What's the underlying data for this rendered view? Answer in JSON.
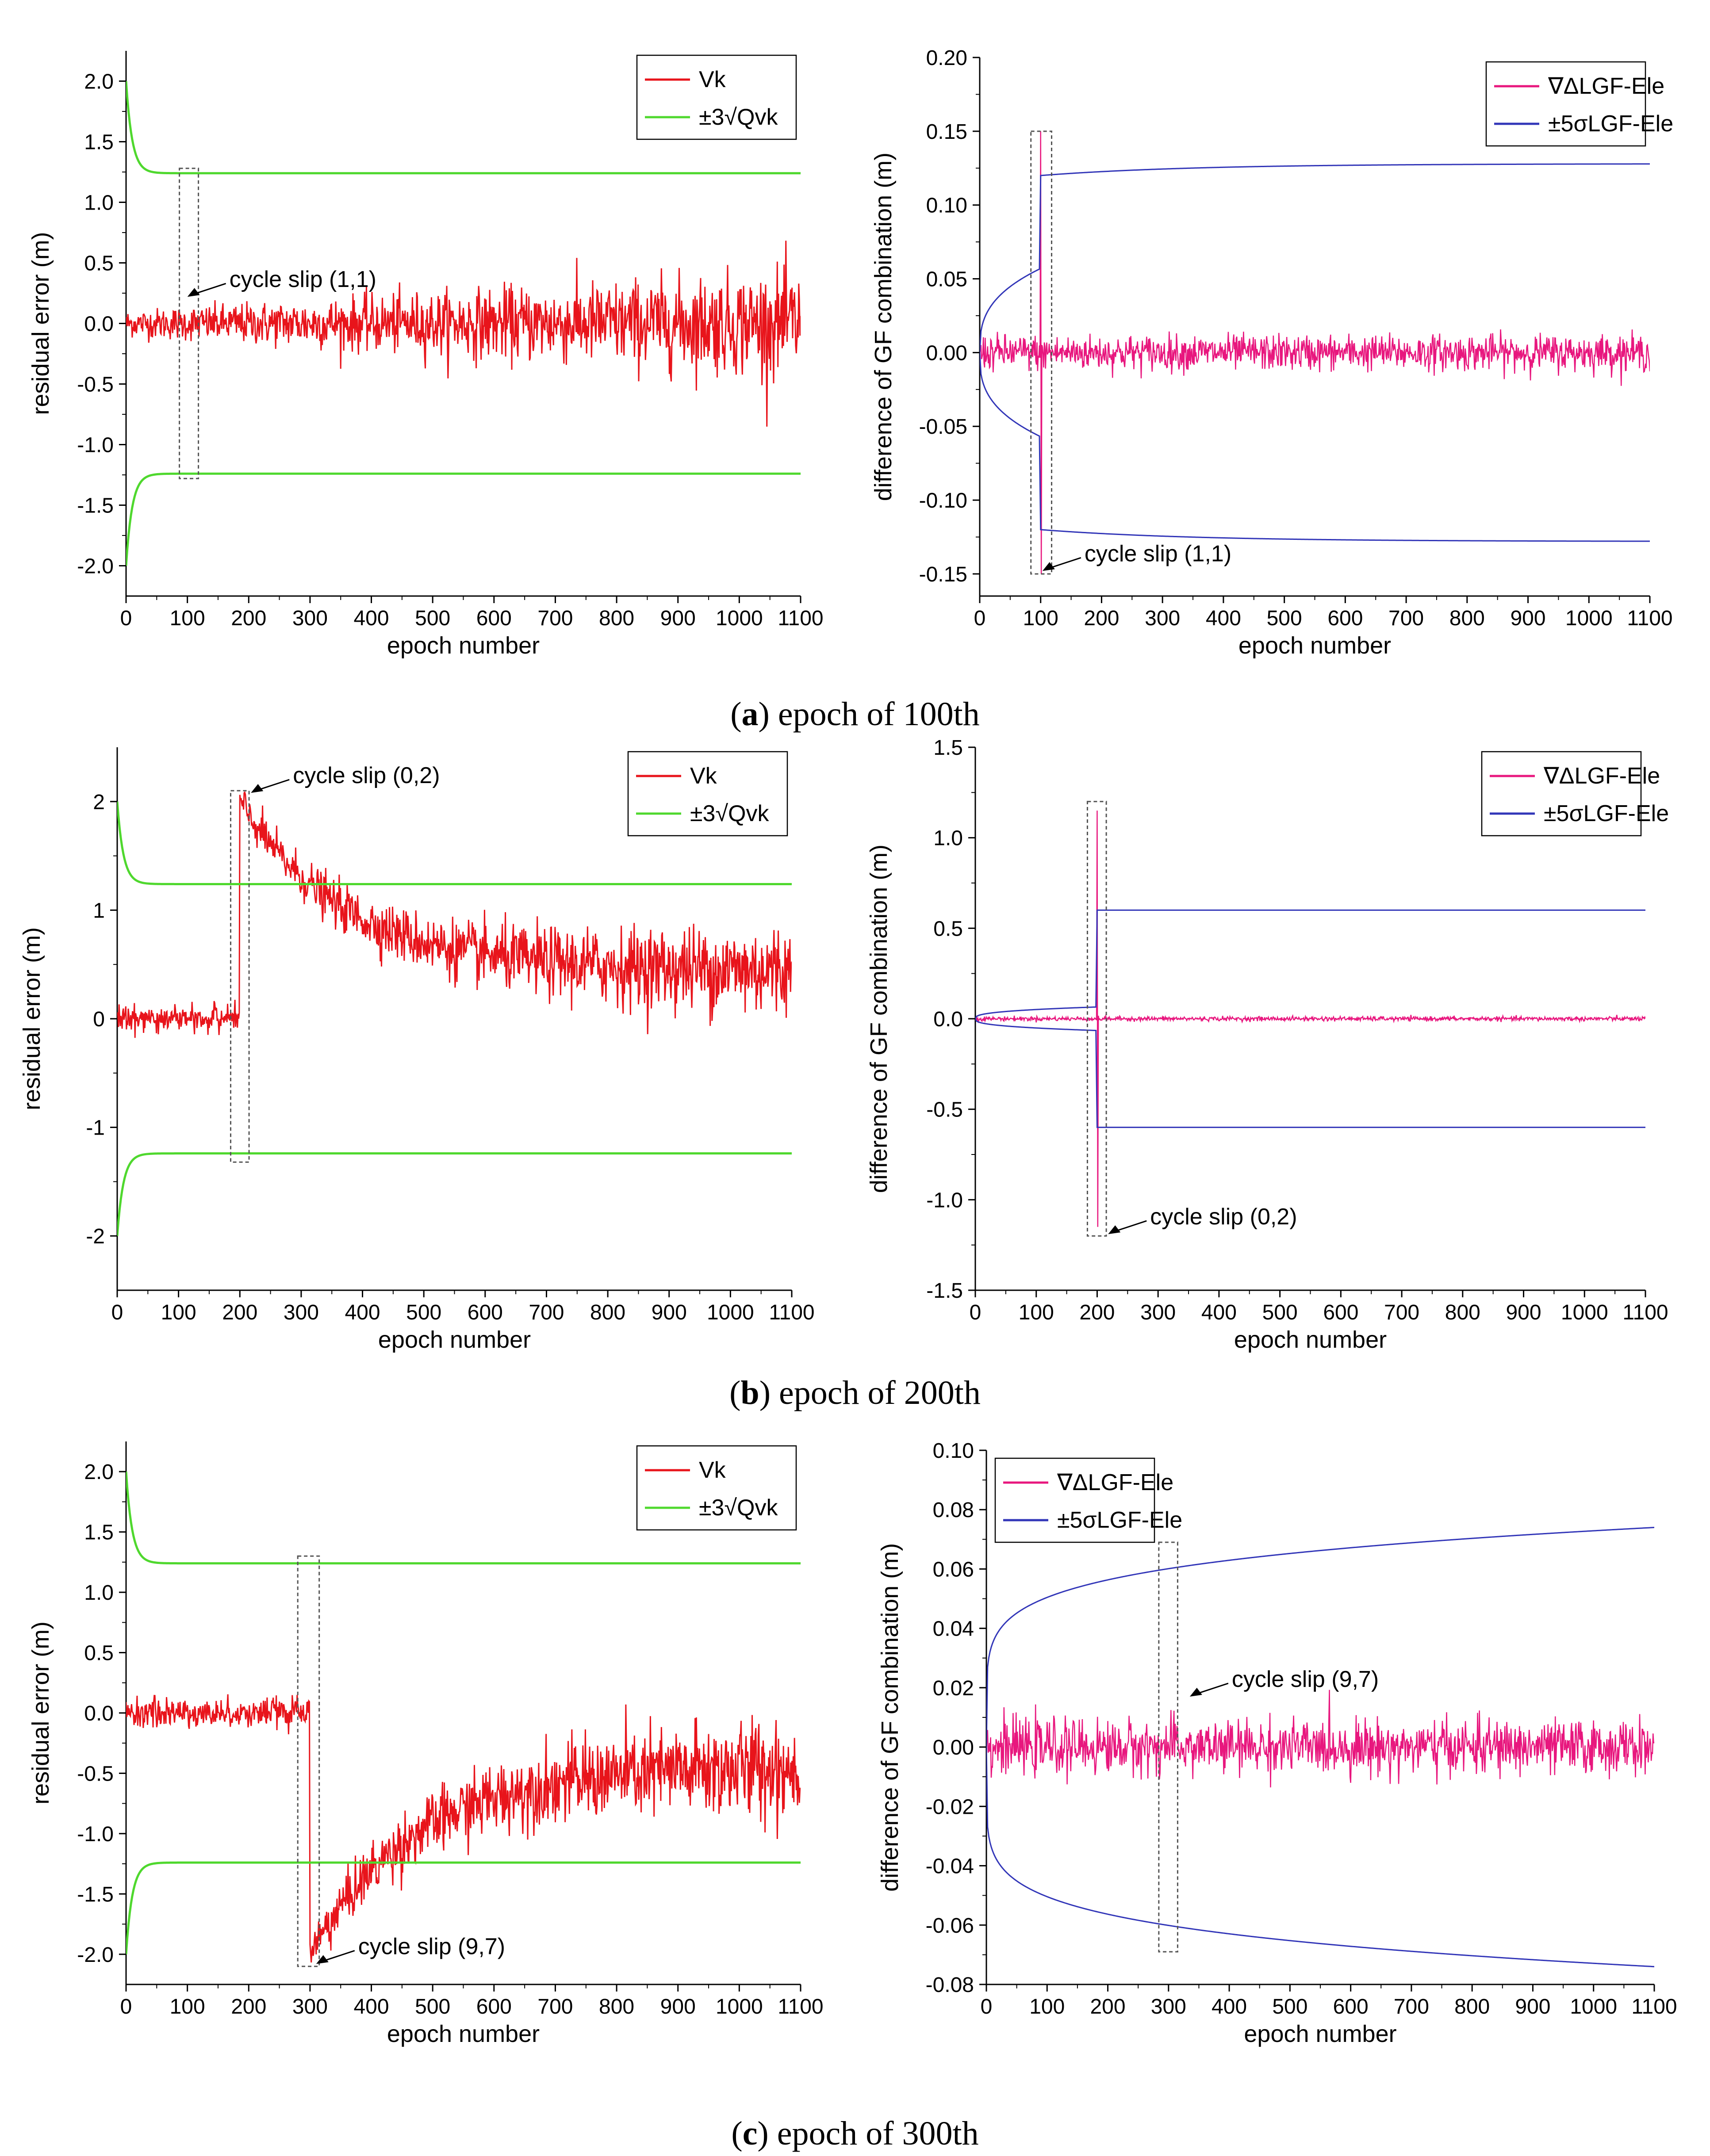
{
  "colors": {
    "residual": "#e8141b",
    "threshold": "#4fd82e",
    "gf_diff": "#e8177e",
    "gf_bound": "#3236b8"
  },
  "chart_data": [
    {
      "type": "line",
      "panel": "a",
      "side": "left",
      "xlabel": "epoch number",
      "ylabel": "residual error (m)",
      "xlim": [
        0,
        1100
      ],
      "ylim": [
        -2.25,
        2.25
      ],
      "xticks": [
        "0",
        "100",
        "200",
        "300",
        "400",
        "500",
        "600",
        "700",
        "800",
        "900",
        "1000",
        "1100"
      ],
      "yticks": [
        "2.0",
        "1.5",
        "1.0",
        "0.5",
        "0.0",
        "-0.5",
        "-1.0",
        "-1.5",
        "-2.0"
      ],
      "ytick_values": [
        2.0,
        1.5,
        1.0,
        0.5,
        0.0,
        -0.5,
        -1.0,
        -1.5,
        -2.0
      ],
      "legend": [
        "Vk",
        "±3√Qvk"
      ],
      "legend_position": "top-right",
      "series": [
        {
          "name": "Vk",
          "kind": "residual",
          "slip_epoch": 100,
          "jump": 0,
          "noise_start": 0.1,
          "noise_end": 0.4
        },
        {
          "name": "±3√Qvk",
          "kind": "threshold",
          "start": 2.0,
          "asymptote": 1.24,
          "decay_epochs": 10
        }
      ],
      "slip_box": {
        "x_range": [
          87,
          118
        ],
        "y_range": [
          -1.28,
          1.28
        ]
      },
      "annotation": "cycle slip (1,1)",
      "annotation_at": {
        "x": 100,
        "y": 0.22
      }
    },
    {
      "type": "line",
      "panel": "a",
      "side": "right",
      "xlabel": "epoch number",
      "ylabel": "difference of GF combination (m)",
      "xlim": [
        0,
        1100
      ],
      "ylim": [
        -0.165,
        0.2
      ],
      "xticks": [
        "0",
        "100",
        "200",
        "300",
        "400",
        "500",
        "600",
        "700",
        "800",
        "900",
        "1000",
        "1100"
      ],
      "yticks": [
        "0.20",
        "0.15",
        "0.10",
        "0.05",
        "0.00",
        "-0.05",
        "-0.10",
        "-0.15"
      ],
      "ytick_values": [
        0.2,
        0.15,
        0.1,
        0.05,
        0.0,
        -0.05,
        -0.1,
        -0.15
      ],
      "legend": [
        "∇ΔLGF-Ele",
        "±5σLGF-Ele"
      ],
      "legend_position": "top-right",
      "series": [
        {
          "name": "∇ΔLGF-Ele",
          "kind": "gf_diff",
          "slip_epoch": 100,
          "spike": 0.15,
          "noise": 0.006
        },
        {
          "name": "±5σLGF-Ele",
          "kind": "gf_bound",
          "slip_epoch": 100,
          "pre_level": 0.057,
          "post_start": 0.12,
          "post_end": 0.128
        }
      ],
      "slip_box": {
        "x_range": [
          84,
          118
        ],
        "y_range": [
          -0.15,
          0.15
        ]
      },
      "annotation": "cycle slip (1,1)",
      "annotation_at": {
        "x": 103,
        "y": -0.148
      }
    },
    {
      "type": "line",
      "panel": "b",
      "side": "left",
      "xlabel": "epoch number",
      "ylabel": "residual error (m)",
      "xlim": [
        0,
        1100
      ],
      "ylim": [
        -2.5,
        2.5
      ],
      "xticks": [
        "0",
        "100",
        "200",
        "300",
        "400",
        "500",
        "600",
        "700",
        "800",
        "900",
        "1000",
        "1100"
      ],
      "yticks": [
        "2",
        "1",
        "0",
        "-1",
        "-2"
      ],
      "ytick_values": [
        2,
        1,
        0,
        -1,
        -2
      ],
      "legend": [
        "Vk",
        "±3√Qvk"
      ],
      "legend_position": "top-right",
      "series": [
        {
          "name": "Vk",
          "kind": "residual",
          "slip_epoch": 200,
          "jump": 2.0,
          "noise_start": 0.1,
          "noise_end": 0.4
        },
        {
          "name": "±3√Qvk",
          "kind": "threshold",
          "start": 2.0,
          "asymptote": 1.24,
          "decay_epochs": 10
        }
      ],
      "slip_box": {
        "x_range": [
          185,
          215
        ],
        "y_range": [
          -1.32,
          2.1
        ]
      },
      "annotation": "cycle slip (0,2)",
      "annotation_at": {
        "x": 218,
        "y": 2.08
      }
    },
    {
      "type": "line",
      "panel": "b",
      "side": "right",
      "xlabel": "epoch number",
      "ylabel": "difference of GF combination (m)",
      "xlim": [
        0,
        1100
      ],
      "ylim": [
        -1.5,
        1.5
      ],
      "xticks": [
        "0",
        "100",
        "200",
        "300",
        "400",
        "500",
        "600",
        "700",
        "800",
        "900",
        "1000",
        "1100"
      ],
      "yticks": [
        "1.5",
        "1.0",
        "0.5",
        "0.0",
        "-0.5",
        "-1.0",
        "-1.5"
      ],
      "ytick_values": [
        1.5,
        1.0,
        0.5,
        0.0,
        -0.5,
        -1.0,
        -1.5
      ],
      "legend": [
        "∇ΔLGF-Ele",
        "±5σLGF-Ele"
      ],
      "legend_position": "top-right",
      "series": [
        {
          "name": "∇ΔLGF-Ele",
          "kind": "gf_diff",
          "slip_epoch": 200,
          "spike": 1.15,
          "noise": 0.006
        },
        {
          "name": "±5σLGF-Ele",
          "kind": "gf_bound",
          "slip_epoch": 200,
          "pre_level": 0.065,
          "post_start": 0.6,
          "post_end": 0.6
        }
      ],
      "slip_box": {
        "x_range": [
          184,
          215
        ],
        "y_range": [
          -1.2,
          1.2
        ]
      },
      "annotation": "cycle slip (0,2)",
      "annotation_at": {
        "x": 218,
        "y": -1.19
      }
    },
    {
      "type": "line",
      "panel": "c",
      "side": "left",
      "xlabel": "epoch number",
      "ylabel": "residual error (m)",
      "xlim": [
        0,
        1100
      ],
      "ylim": [
        -2.25,
        2.25
      ],
      "xticks": [
        "0",
        "100",
        "200",
        "300",
        "400",
        "500",
        "600",
        "700",
        "800",
        "900",
        "1000",
        "1100"
      ],
      "yticks": [
        "2.0",
        "1.5",
        "1.0",
        "0.5",
        "0.0",
        "-0.5",
        "-1.0",
        "-1.5",
        "-2.0"
      ],
      "ytick_values": [
        2.0,
        1.5,
        1.0,
        0.5,
        0.0,
        -0.5,
        -1.0,
        -1.5,
        -2.0
      ],
      "legend": [
        "Vk",
        "±3√Qvk"
      ],
      "legend_position": "top-right",
      "series": [
        {
          "name": "Vk",
          "kind": "residual",
          "slip_epoch": 300,
          "jump": -2.0,
          "noise_start": 0.1,
          "noise_end": 0.4
        },
        {
          "name": "±3√Qvk",
          "kind": "threshold",
          "start": 2.0,
          "asymptote": 1.24,
          "decay_epochs": 10
        }
      ],
      "slip_box": {
        "x_range": [
          280,
          315
        ],
        "y_range": [
          -2.1,
          1.3
        ]
      },
      "annotation": "cycle slip (9,7)",
      "annotation_at": {
        "x": 310,
        "y": -2.08
      }
    },
    {
      "type": "line",
      "panel": "c",
      "side": "right",
      "xlabel": "epoch number",
      "ylabel": "difference of GF combination (m)",
      "xlim": [
        0,
        1100
      ],
      "ylim": [
        -0.08,
        0.1
      ],
      "xticks": [
        "0",
        "100",
        "200",
        "300",
        "400",
        "500",
        "600",
        "700",
        "800",
        "900",
        "1000",
        "1100"
      ],
      "yticks": [
        "0.10",
        "0.08",
        "0.06",
        "0.04",
        "0.02",
        "0.00",
        "-0.02",
        "-0.04",
        "-0.06",
        "-0.08"
      ],
      "ytick_values": [
        0.1,
        0.08,
        0.06,
        0.04,
        0.02,
        0.0,
        -0.02,
        -0.04,
        -0.06,
        -0.08
      ],
      "legend": [
        "∇ΔLGF-Ele",
        "±5σLGF-Ele"
      ],
      "legend_position": "top-left",
      "series": [
        {
          "name": "∇ΔLGF-Ele",
          "kind": "gf_diff",
          "slip_epoch": 300,
          "spike": 0,
          "noise": 0.0045
        },
        {
          "name": "±5σLGF-Ele",
          "kind": "gf_bound_smooth",
          "end_level": 0.074,
          "knee": 0.068
        }
      ],
      "slip_box": {
        "x_range": [
          284,
          315
        ],
        "y_range": [
          -0.069,
          0.069
        ]
      },
      "annotation": "cycle slip (9,7)",
      "annotation_at": {
        "x": 335,
        "y": 0.017
      }
    }
  ],
  "captions": [
    {
      "letter": "a",
      "text": "epoch of 100th"
    },
    {
      "letter": "b",
      "text": "epoch of 200th"
    },
    {
      "letter": "c",
      "text": "epoch of 300th"
    }
  ]
}
